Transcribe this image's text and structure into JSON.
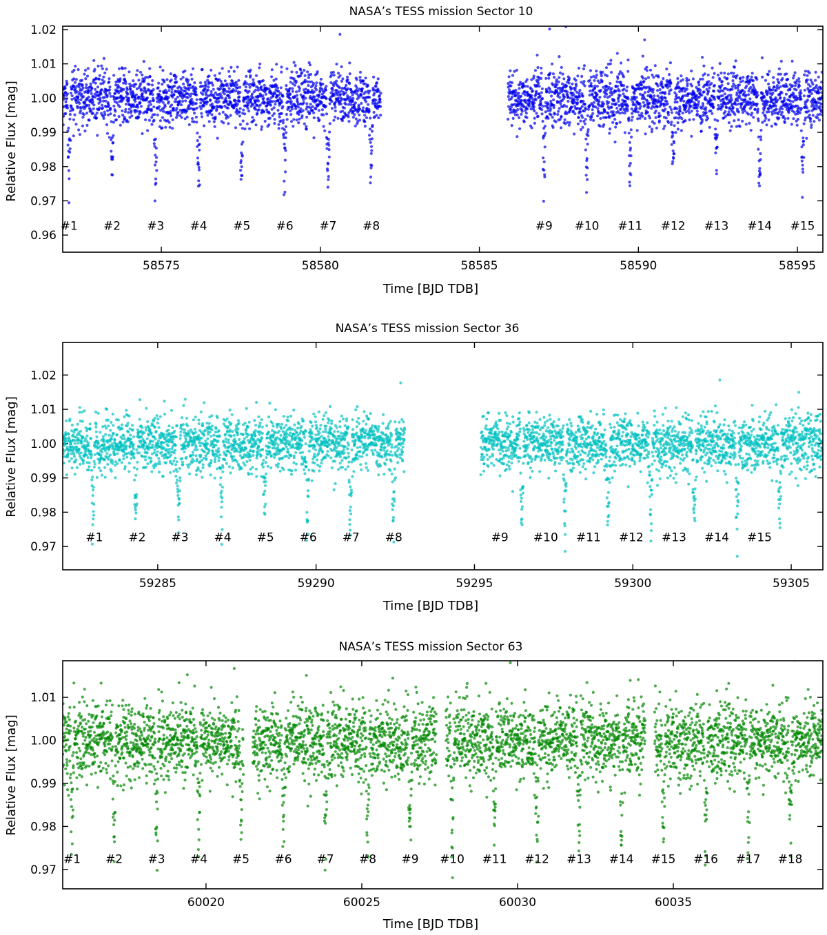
{
  "chart_data": [
    {
      "type": "scatter",
      "title": "NASA’s TESS mission Sector 10",
      "xlabel": "Time [BJD TDB]",
      "ylabel": "Relative Flux [mag]",
      "xlim": [
        58571.9,
        58595.8
      ],
      "ylim": [
        0.955,
        1.021
      ],
      "xticks": [
        58575,
        58580,
        58585,
        58590,
        58595
      ],
      "yticks": [
        0.96,
        0.97,
        0.98,
        0.99,
        1.0,
        1.01,
        1.02
      ],
      "ytick_labels": [
        "0.96",
        "0.97",
        "0.98",
        "0.99",
        "1.00",
        "1.01",
        "1.02"
      ],
      "color": "#0000ee",
      "segments": [
        [
          58571.9,
          58581.9
        ],
        [
          58585.9,
          58595.8
        ]
      ],
      "flux_center": 1.0,
      "flux_scatter": 0.004,
      "transit_period": 1.354,
      "transit_depth": 0.025,
      "transit_times": [
        58572.1,
        58573.45,
        58574.82,
        58576.17,
        58577.53,
        58578.88,
        58580.24,
        58581.6,
        58587.03,
        58588.38,
        58589.74,
        58591.09,
        58592.45,
        58593.81,
        58595.16
      ],
      "transit_labels": [
        "#1",
        "#2",
        "#3",
        "#4",
        "#5",
        "#6",
        "#7",
        "#8",
        "#9",
        "#10",
        "#11",
        "#12",
        "#13",
        "#14",
        "#15"
      ],
      "transit_label_y": 0.9615,
      "grid": false
    },
    {
      "type": "scatter",
      "title": "NASA’s TESS mission Sector 36",
      "xlabel": "Time [BJD TDB]",
      "ylabel": "Relative Flux [mag]",
      "xlim": [
        59282.0,
        59306.0
      ],
      "ylim": [
        0.9632,
        1.0295
      ],
      "xticks": [
        59285,
        59290,
        59295,
        59300,
        59305
      ],
      "yticks": [
        0.97,
        0.98,
        0.99,
        1.0,
        1.01,
        1.02
      ],
      "ytick_labels": [
        "0.97",
        "0.98",
        "0.99",
        "1.00",
        "1.01",
        "1.02"
      ],
      "color": "#00c0c0",
      "segments": [
        [
          59282.0,
          59292.8
        ],
        [
          59295.2,
          59306.0
        ]
      ],
      "flux_center": 1.0,
      "flux_scatter": 0.004,
      "transit_period": 1.357,
      "transit_depth": 0.025,
      "transit_times": [
        59282.95,
        59284.3,
        59285.66,
        59287.01,
        59288.37,
        59289.73,
        59291.08,
        59292.44,
        59295.15,
        59296.5,
        59297.86,
        59299.22,
        59300.57,
        59301.93,
        59303.29,
        59304.64
      ],
      "transit_labels": [
        "#1",
        "#2",
        "#3",
        "#4",
        "#5",
        "#6",
        "#7",
        "#8",
        "#9",
        "#10",
        "#11",
        "#12",
        "#13",
        "#14",
        "#15"
      ],
      "transit_label_positions": [
        59283.0,
        59284.35,
        59285.7,
        59287.05,
        59288.4,
        59289.75,
        59291.1,
        59292.45,
        59295.8,
        59297.25,
        59298.6,
        59299.95,
        59301.3,
        59302.65,
        59304.0
      ],
      "transit_label_y": 0.9715,
      "grid": false
    },
    {
      "type": "scatter",
      "title": "NASA’s TESS mission Sector 63",
      "xlabel": "Time [BJD TDB]",
      "ylabel": "Relative Flux [mag]",
      "xlim": [
        60015.4,
        60039.8
      ],
      "ylim": [
        0.9655,
        1.0185
      ],
      "xticks": [
        60020,
        60025,
        60030,
        60035
      ],
      "yticks": [
        0.97,
        0.98,
        0.99,
        1.0,
        1.01
      ],
      "ytick_labels": [
        "0.97",
        "0.98",
        "0.99",
        "1.00",
        "1.01"
      ],
      "color": "#008800",
      "segments": [
        [
          60015.4,
          60021.2
        ],
        [
          60021.5,
          60027.4
        ],
        [
          60027.7,
          60034.1
        ],
        [
          60034.4,
          60039.8
        ]
      ],
      "flux_center": 1.0,
      "flux_scatter": 0.0045,
      "transit_period": 1.356,
      "transit_depth": 0.025,
      "transit_times": [
        60015.7,
        60017.05,
        60018.41,
        60019.77,
        60021.12,
        60022.48,
        60023.83,
        60025.19,
        60026.55,
        60027.9,
        60029.26,
        60030.62,
        60031.97,
        60033.33,
        60034.68,
        60036.04,
        60037.4,
        60038.75
      ],
      "transit_labels": [
        "#1",
        "#2",
        "#3",
        "#4",
        "#5",
        "#6",
        "#7",
        "#8",
        "#9",
        "#10",
        "#11",
        "#12",
        "#13",
        "#14",
        "#15",
        "#16",
        "#17",
        "#18"
      ],
      "transit_label_y": 0.9715,
      "grid": false
    }
  ]
}
